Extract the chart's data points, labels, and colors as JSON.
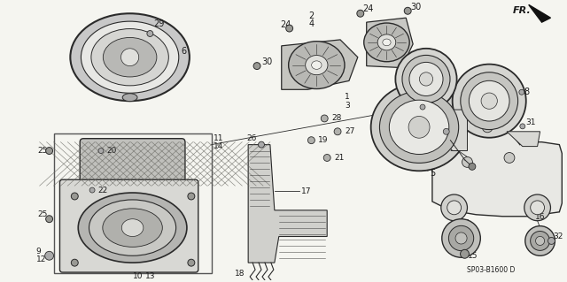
{
  "background_color": "#f5f5f0",
  "line_color": "#2a2a2a",
  "text_color": "#1a1a1a",
  "fig_width": 6.4,
  "fig_height": 3.19,
  "dpi": 100,
  "diagram_code": "SP03-B1600 D"
}
